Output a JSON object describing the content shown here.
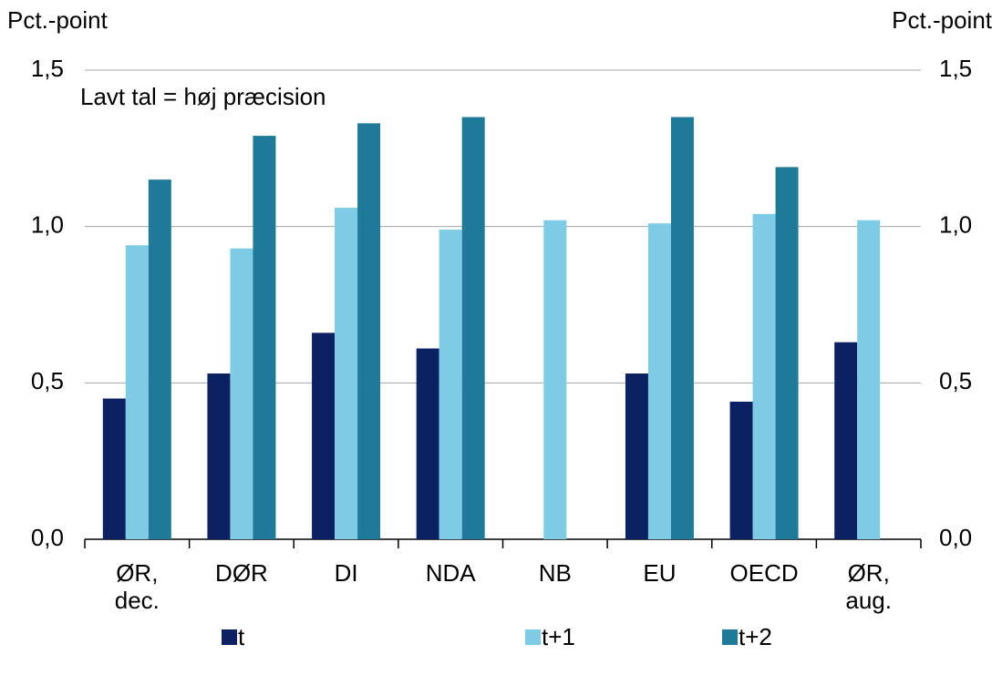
{
  "chart_data": {
    "type": "bar",
    "y_label": "Pct.-point",
    "y2_label": "Pct.-point",
    "annotation": "Lavt tal = høj præcision",
    "categories": [
      "ØR,\ndec.",
      "DØR",
      "DI",
      "NDA",
      "NB",
      "EU",
      "OECD",
      "ØR,\naug."
    ],
    "series": [
      {
        "name": "t",
        "color": "#0c2161",
        "values": [
          0.45,
          0.53,
          0.66,
          0.61,
          null,
          0.53,
          0.44,
          0.63
        ]
      },
      {
        "name": "t+1",
        "color": "#7ecbe6",
        "values": [
          0.94,
          0.93,
          1.06,
          0.99,
          1.02,
          1.01,
          1.04,
          1.02
        ]
      },
      {
        "name": "t+2",
        "color": "#1f7a99",
        "values": [
          1.15,
          1.29,
          1.33,
          1.35,
          null,
          1.35,
          1.19,
          null
        ]
      }
    ],
    "ylim": [
      0,
      1.5
    ],
    "yticks": [
      {
        "value": 0,
        "label": "0,0"
      },
      {
        "value": 0.5,
        "label": "0,5"
      },
      {
        "value": 1,
        "label": "1,0"
      },
      {
        "value": 1.5,
        "label": "1,5"
      }
    ],
    "y2lim": [
      0,
      1.5
    ],
    "y2ticks": [
      {
        "value": 0,
        "label": "0,0"
      },
      {
        "value": 0.5,
        "label": "0,5"
      },
      {
        "value": 1,
        "label": "1,0"
      },
      {
        "value": 1.5,
        "label": "1,5"
      }
    ],
    "grid": true,
    "legend": "bottom"
  }
}
